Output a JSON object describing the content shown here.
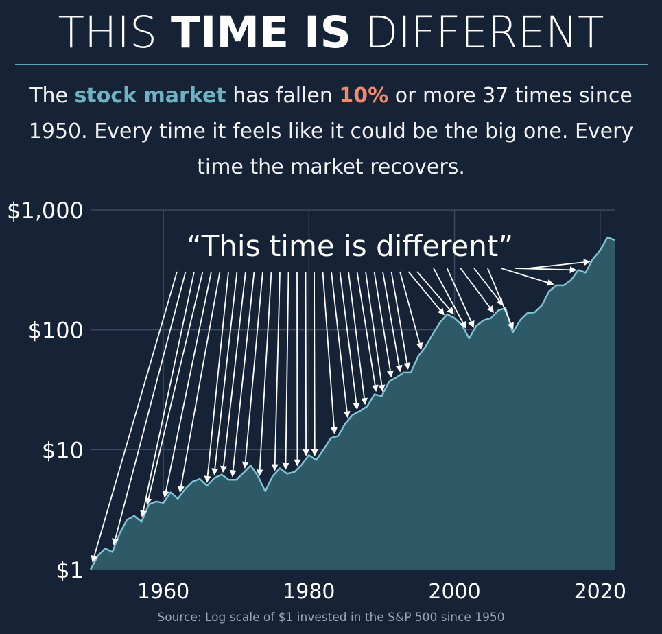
{
  "title": {
    "part1": "THIS ",
    "part2": "TIME IS",
    "part3": " DIFFERENT"
  },
  "subtitle": {
    "prefix": "The ",
    "highlight1": "stock market",
    "middle": " has fallen ",
    "highlight2": "10%",
    "suffix": " or more 37 times since 1950. Every time it feels like it could be the big one. Every time the market recovers."
  },
  "source": "Source: Log scale of $1 invested in the S&P 500 since 1950",
  "colors": {
    "background": "#162236",
    "accent_teal": "#6fb3c3",
    "accent_orange": "#f08a6c",
    "area_fill": "#2e5a67",
    "line": "#7fc3d2",
    "grid": "#3b4a5f"
  },
  "chart_data": {
    "type": "area",
    "yscale": "log",
    "ylim": [
      1,
      1000
    ],
    "xlim": [
      1950,
      2022
    ],
    "y_ticks": [
      {
        "value": 1,
        "label": "$1"
      },
      {
        "value": 10,
        "label": "$10"
      },
      {
        "value": 100,
        "label": "$100"
      },
      {
        "value": 1000,
        "label": "$1,000"
      }
    ],
    "x_ticks": [
      {
        "value": 1960,
        "label": "1960"
      },
      {
        "value": 1980,
        "label": "1980"
      },
      {
        "value": 2000,
        "label": "2000"
      },
      {
        "value": 2020,
        "label": "2020"
      }
    ],
    "grid": true,
    "annotation": "“This time is different”",
    "series": [
      {
        "x": [
          1950,
          1951,
          1952,
          1953,
          1954,
          1955,
          1956,
          1957,
          1958,
          1959,
          1960,
          1961,
          1962,
          1963,
          1964,
          1965,
          1966,
          1967,
          1968,
          1969,
          1970,
          1971,
          1972,
          1973,
          1974,
          1975,
          1976,
          1977,
          1978,
          1979,
          1980,
          1981,
          1982,
          1983,
          1984,
          1985,
          1986,
          1987,
          1988,
          1989,
          1990,
          1991,
          1992,
          1993,
          1994,
          1995,
          1996,
          1997,
          1998,
          1999,
          2000,
          2001,
          2002,
          2003,
          2004,
          2005,
          2006,
          2007,
          2008,
          2009,
          2010,
          2011,
          2012,
          2013,
          2014,
          2015,
          2016,
          2017,
          2018,
          2019,
          2020,
          2021,
          2022
        ],
        "values": [
          1.0,
          1.3,
          1.5,
          1.4,
          2.0,
          2.6,
          2.8,
          2.5,
          3.5,
          3.7,
          3.6,
          4.4,
          3.9,
          4.7,
          5.4,
          5.7,
          5.0,
          5.8,
          6.2,
          5.6,
          5.6,
          6.4,
          7.4,
          6.0,
          4.5,
          6.0,
          7.0,
          6.3,
          6.5,
          7.5,
          9.0,
          8.2,
          10.0,
          12.5,
          13.0,
          16.5,
          19.5,
          21.0,
          23.0,
          29.0,
          28.0,
          37.0,
          40.0,
          44.0,
          44.0,
          60.0,
          72.0,
          92.0,
          115.0,
          135.0,
          125.0,
          110.0,
          85.0,
          108.0,
          120.0,
          125.0,
          145.0,
          152.0,
          95.0,
          120.0,
          138.0,
          140.0,
          160.0,
          210.0,
          235.0,
          235.0,
          260.0,
          315.0,
          300.0,
          390.0,
          460.0,
          590.0,
          560.0
        ]
      }
    ],
    "drawdown_years": [
      1950.3,
      1953.2,
      1957.1,
      1957.8,
      1960.2,
      1962.3,
      1966.0,
      1967.0,
      1968.2,
      1969.5,
      1971.2,
      1973.2,
      1975.3,
      1976.8,
      1978.4,
      1979.6,
      1980.8,
      1983.5,
      1985.3,
      1986.6,
      1987.7,
      1989.2,
      1990.1,
      1991.3,
      1992.5,
      1993.6,
      1995.4,
      1998.5,
      1999.8,
      2001.5,
      2002.6,
      2005.3,
      2006.6,
      2008.0,
      2013.5,
      2016.6,
      2018.5
    ]
  }
}
